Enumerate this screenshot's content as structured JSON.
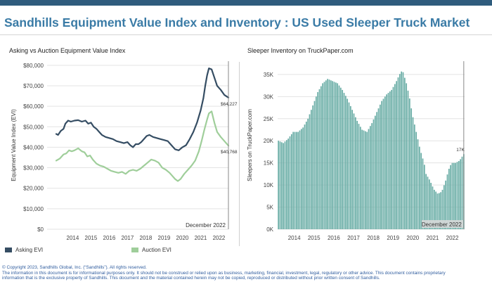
{
  "header": {
    "title": "Sandhills Equipment Value Index and Inventory : US Used Sleeper Truck Market"
  },
  "colors": {
    "topbar": "#2f5c7d",
    "asking": "#354d63",
    "auction": "#9fce9a",
    "bars": "#6aada6",
    "marker": "#888888"
  },
  "chart_data": [
    {
      "type": "line",
      "title": "Asking vs Auction Equipment Value Index",
      "ylabel": "Equipment Value Index (EVI)",
      "ylim": [
        0,
        82000
      ],
      "xlim": [
        2013.0,
        2022.92
      ],
      "yticks": [
        0,
        10000,
        20000,
        30000,
        40000,
        50000,
        60000,
        70000,
        80000
      ],
      "ytick_labels": [
        "$0",
        "$10,000",
        "$20,000",
        "$30,000",
        "$40,000",
        "$50,000",
        "$60,000",
        "$70,000",
        "$80,000"
      ],
      "xticks": [
        2014,
        2015,
        2016,
        2017,
        2018,
        2019,
        2020,
        2021,
        2022
      ],
      "xtick_labels": [
        "2014",
        "2015",
        "2016",
        "2017",
        "2018",
        "2019",
        "2020",
        "2021",
        "2022"
      ],
      "grid": "horizontal",
      "legend_position": "bottom",
      "marker_label": "December 2022",
      "series": [
        {
          "name": "Asking EVI",
          "end_label": "$64,227",
          "x": [
            2013.5,
            2013.6,
            2013.75,
            2013.9,
            2014.0,
            2014.15,
            2014.3,
            2014.5,
            2014.7,
            2014.9,
            2015.1,
            2015.25,
            2015.4,
            2015.55,
            2015.7,
            2015.85,
            2016.0,
            2016.2,
            2016.4,
            2016.6,
            2016.8,
            2017.0,
            2017.2,
            2017.4,
            2017.55,
            2017.7,
            2017.85,
            2018.0,
            2018.15,
            2018.3,
            2018.45,
            2018.6,
            2018.8,
            2019.0,
            2019.2,
            2019.4,
            2019.6,
            2019.8,
            2020.0,
            2020.2,
            2020.4,
            2020.6,
            2020.8,
            2021.0,
            2021.2,
            2021.4,
            2021.55,
            2021.65,
            2021.75,
            2021.85,
            2022.0,
            2022.15,
            2022.3,
            2022.5,
            2022.7,
            2022.92
          ],
          "values": [
            46500,
            46000,
            48000,
            49000,
            51500,
            53000,
            52500,
            53000,
            53200,
            52500,
            53000,
            51500,
            52000,
            50000,
            49000,
            47500,
            46000,
            45000,
            44500,
            44000,
            43000,
            42500,
            42000,
            42500,
            41000,
            40000,
            41500,
            41500,
            42500,
            44000,
            45500,
            46000,
            45000,
            44500,
            44000,
            43500,
            43000,
            41000,
            39000,
            38500,
            40000,
            41000,
            44000,
            47500,
            52000,
            58000,
            64000,
            70000,
            75000,
            78500,
            78000,
            74000,
            70000,
            68000,
            65500,
            64227
          ]
        },
        {
          "name": "Auction EVI",
          "end_label": "$40,768",
          "x": [
            2013.5,
            2013.7,
            2013.9,
            2014.05,
            2014.2,
            2014.35,
            2014.5,
            2014.7,
            2014.9,
            2015.05,
            2015.2,
            2015.35,
            2015.5,
            2015.7,
            2015.9,
            2016.1,
            2016.3,
            2016.5,
            2016.7,
            2016.9,
            2017.1,
            2017.3,
            2017.5,
            2017.7,
            2017.9,
            2018.1,
            2018.3,
            2018.5,
            2018.7,
            2018.9,
            2019.1,
            2019.3,
            2019.5,
            2019.7,
            2019.85,
            2020.0,
            2020.15,
            2020.3,
            2020.5,
            2020.7,
            2020.9,
            2021.1,
            2021.3,
            2021.45,
            2021.6,
            2021.75,
            2021.85,
            2022.0,
            2022.15,
            2022.3,
            2022.5,
            2022.7,
            2022.92
          ],
          "values": [
            33500,
            34500,
            36500,
            37000,
            38500,
            38000,
            38500,
            39500,
            38000,
            37500,
            35500,
            36000,
            34000,
            32000,
            31000,
            30500,
            29500,
            28500,
            28000,
            27500,
            28000,
            27000,
            28500,
            29000,
            28500,
            29500,
            31000,
            32500,
            34000,
            33500,
            32500,
            30000,
            29000,
            27500,
            26000,
            24500,
            23500,
            24500,
            27000,
            29000,
            31000,
            33500,
            38000,
            43000,
            48500,
            53500,
            56500,
            57500,
            52000,
            47500,
            45000,
            43000,
            40768
          ]
        }
      ]
    },
    {
      "type": "bar",
      "title": "Sleeper Inventory on TruckPaper.com",
      "ylabel": "Sleepers on TruckPaper.com",
      "ylim": [
        0,
        38000
      ],
      "xlim": [
        2013.46,
        2022.92
      ],
      "yticks": [
        0,
        5000,
        10000,
        15000,
        20000,
        25000,
        30000,
        35000
      ],
      "ytick_labels": [
        "0K",
        "5K",
        "10K",
        "15K",
        "20K",
        "25K",
        "30K",
        "35K"
      ],
      "xticks": [
        2014,
        2015,
        2016,
        2017,
        2018,
        2019,
        2020,
        2021,
        2022
      ],
      "xtick_labels": [
        "2014",
        "2015",
        "2016",
        "2017",
        "2018",
        "2019",
        "2020",
        "2021",
        "2022"
      ],
      "grid": "horizontal",
      "marker_label": "December 2022",
      "end_label": "17K",
      "knots_x": [
        2013.5,
        2013.75,
        2014.0,
        2014.25,
        2014.5,
        2014.75,
        2015.0,
        2015.25,
        2015.5,
        2015.75,
        2016.0,
        2016.25,
        2016.5,
        2016.75,
        2017.0,
        2017.25,
        2017.5,
        2017.75,
        2018.0,
        2018.25,
        2018.5,
        2018.75,
        2019.0,
        2019.25,
        2019.5,
        2019.65,
        2019.8,
        2020.0,
        2020.15,
        2020.3,
        2020.5,
        2020.7,
        2020.9,
        2021.0,
        2021.2,
        2021.4,
        2021.6,
        2021.8,
        2022.0,
        2022.15,
        2022.3,
        2022.5,
        2022.7,
        2022.92
      ],
      "knots_y": [
        20000,
        19500,
        20500,
        22000,
        22000,
        23000,
        25000,
        28000,
        31000,
        33000,
        34000,
        33500,
        33000,
        31500,
        29500,
        27000,
        24500,
        22500,
        22000,
        24000,
        26500,
        29000,
        30500,
        31500,
        33500,
        35000,
        36000,
        33000,
        30000,
        26000,
        22000,
        18000,
        15000,
        12500,
        11000,
        9000,
        8000,
        8500,
        11000,
        13500,
        15000,
        15000,
        15500,
        17000
      ]
    }
  ],
  "legend": {
    "asking": "Asking EVI",
    "auction": "Auction EVI"
  },
  "footer": {
    "line1": "© Copyright 2023, Sandhills Global, Inc. (“Sandhills”). All rights reserved.",
    "line2": "The information in this document is for informational purposes only.  It should not be construed or relied upon as business, marketing, financial, investment, legal, regulatory or other advice. This document contains proprietary",
    "line3": "information that is the exclusive property of Sandhills. This document and the material contained herein may not be copied, reproduced or distributed without prior written consent of Sandhills."
  }
}
